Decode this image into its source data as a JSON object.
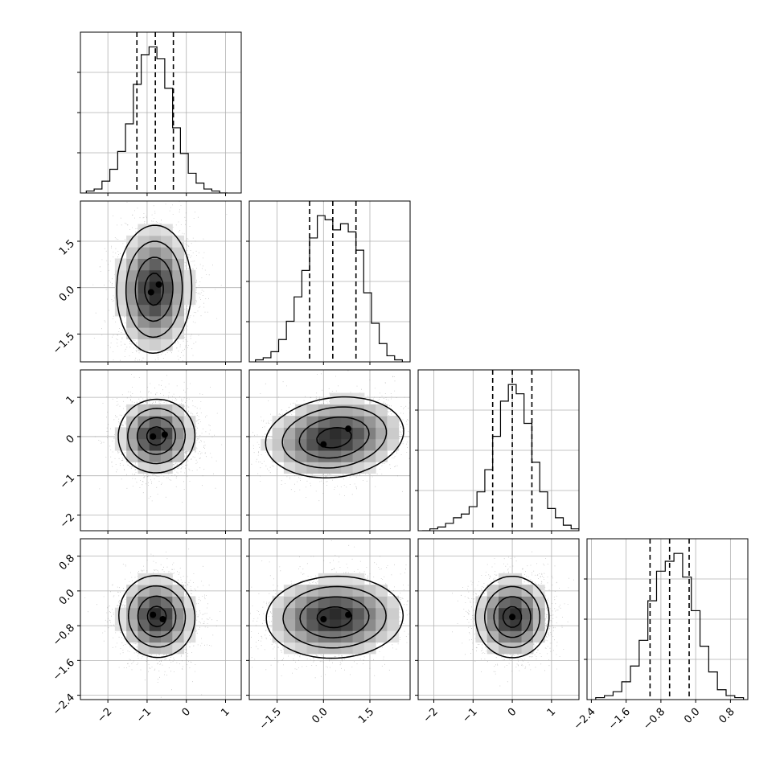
{
  "chart_data": {
    "type": "corner",
    "parameters": [
      {
        "index": 0,
        "mean": -0.8,
        "std": 0.5,
        "range": [
          -2.7,
          1.4
        ],
        "ticks": [
          -2,
          -1,
          0,
          1
        ],
        "tick_labels": [
          "−2",
          "−1",
          "0",
          "1"
        ],
        "quantiles": [
          -1.26,
          -0.79,
          -0.33
        ]
      },
      {
        "index": 1,
        "mean": 0.3,
        "std": 1.1,
        "range": [
          -2.4,
          2.8
        ],
        "ticks": [
          -1.5,
          0.0,
          1.5
        ],
        "tick_labels": [
          "−1.5",
          "0.0",
          "1.5"
        ],
        "quantiles": [
          -0.45,
          0.3,
          1.05
        ]
      },
      {
        "index": 2,
        "mean": 0.0,
        "std": 0.5,
        "range": [
          -2.4,
          1.7
        ],
        "ticks": [
          -2,
          -1,
          0,
          1
        ],
        "tick_labels": [
          "−2",
          "−1",
          "0",
          "1"
        ],
        "quantiles": [
          -0.5,
          0.0,
          0.5
        ]
      },
      {
        "index": 3,
        "mean": -0.6,
        "std": 0.5,
        "range": [
          -2.5,
          1.2
        ],
        "ticks": [
          -2.4,
          -1.6,
          -0.8,
          0.0,
          0.8
        ],
        "tick_labels": [
          "−2.4",
          "−1.6",
          "−0.8",
          "0.0",
          "0.8"
        ],
        "quantiles": [
          -1.05,
          -0.6,
          -0.15
        ]
      }
    ],
    "histograms": [
      {
        "param": 0,
        "bin_edges": [
          -2.55,
          -2.35,
          -2.15,
          -1.95,
          -1.75,
          -1.55,
          -1.35,
          -1.15,
          -0.95,
          -0.75,
          -0.55,
          -0.35,
          -0.15,
          0.05,
          0.25,
          0.45,
          0.65,
          0.85,
          1.05
        ],
        "counts": [
          1,
          2,
          6,
          12,
          21,
          35,
          55,
          70,
          74,
          68,
          53,
          33,
          20,
          10,
          5,
          2,
          1,
          0
        ]
      },
      {
        "param": 1,
        "bin_edges": [
          -2.2,
          -1.95,
          -1.7,
          -1.45,
          -1.2,
          -0.95,
          -0.7,
          -0.45,
          -0.2,
          0.05,
          0.3,
          0.55,
          0.8,
          1.05,
          1.3,
          1.55,
          1.8,
          2.05,
          2.3,
          2.55
        ],
        "counts": [
          1,
          2,
          5,
          11,
          20,
          32,
          45,
          61,
          72,
          70,
          65,
          68,
          64,
          55,
          34,
          19,
          9,
          3,
          1
        ]
      },
      {
        "param": 2,
        "bin_edges": [
          -2.3,
          -2.1,
          -1.9,
          -1.7,
          -1.5,
          -1.3,
          -1.1,
          -0.9,
          -0.7,
          -0.5,
          -0.3,
          -0.1,
          0.1,
          0.3,
          0.5,
          0.7,
          0.9,
          1.1,
          1.3,
          1.5,
          1.7
        ],
        "counts": [
          0,
          1,
          2,
          4,
          7,
          9,
          13,
          21,
          33,
          51,
          70,
          79,
          74,
          58,
          37,
          21,
          12,
          7,
          3,
          1
        ]
      },
      {
        "param": 3,
        "bin_edges": [
          -2.3,
          -2.1,
          -1.9,
          -1.7,
          -1.5,
          -1.3,
          -1.1,
          -0.9,
          -0.7,
          -0.5,
          -0.3,
          -0.1,
          0.1,
          0.3,
          0.5,
          0.7,
          0.9,
          1.1
        ],
        "counts": [
          1,
          2,
          4,
          9,
          17,
          30,
          50,
          65,
          70,
          74,
          62,
          45,
          27,
          14,
          5,
          2,
          1
        ]
      }
    ],
    "pairs": [
      {
        "row": 1,
        "col": 0,
        "contour_levels_sigma": [
          0.5,
          1.0,
          1.5,
          2.0
        ],
        "peaks": [
          {
            "x": -0.9,
            "y": -0.15,
            "w": 0.6
          },
          {
            "x": -0.7,
            "y": 0.1,
            "w": 0.4
          }
        ]
      },
      {
        "row": 2,
        "col": 0,
        "contour_levels_sigma": [
          0.5,
          1.0,
          1.5,
          2.0
        ],
        "peaks": [
          {
            "x": -0.85,
            "y": 0.0,
            "w": 0.7
          },
          {
            "x": -0.55,
            "y": 0.05,
            "w": 0.3
          }
        ]
      },
      {
        "row": 2,
        "col": 1,
        "contour_levels_sigma": [
          0.5,
          1.0,
          1.5,
          2.0
        ],
        "peaks": [
          {
            "x": 0.0,
            "y": -0.2,
            "w": 0.55
          },
          {
            "x": 0.8,
            "y": 0.2,
            "w": 0.45
          }
        ]
      },
      {
        "row": 3,
        "col": 0,
        "contour_levels_sigma": [
          0.5,
          1.0,
          1.5,
          2.0
        ],
        "peaks": [
          {
            "x": -0.85,
            "y": -0.55,
            "w": 0.6
          },
          {
            "x": -0.6,
            "y": -0.65,
            "w": 0.4
          }
        ]
      },
      {
        "row": 3,
        "col": 1,
        "contour_levels_sigma": [
          0.5,
          1.0,
          1.5,
          2.0
        ],
        "peaks": [
          {
            "x": 0.0,
            "y": -0.65,
            "w": 0.55
          },
          {
            "x": 0.8,
            "y": -0.55,
            "w": 0.45
          }
        ]
      },
      {
        "row": 3,
        "col": 2,
        "contour_levels_sigma": [
          0.5,
          1.0,
          1.5,
          2.0
        ],
        "peaks": [
          {
            "x": 0.0,
            "y": -0.6,
            "w": 1.0
          }
        ]
      }
    ],
    "grid": true,
    "title": "",
    "xlabel": "",
    "ylabel": ""
  }
}
